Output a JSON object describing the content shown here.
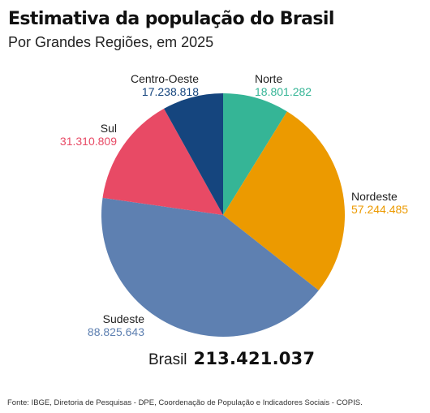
{
  "title": "Estimativa da população do Brasil",
  "subtitle": "Por Grandes Regiões, em 2025",
  "chart_data": {
    "type": "pie",
    "title": "Estimativa da população do Brasil",
    "subtitle": "Por Grandes Regiões, em 2025",
    "slices": [
      {
        "name": "Norte",
        "value": 18801282,
        "label": "18.801.282",
        "color": "#35b596"
      },
      {
        "name": "Nordeste",
        "value": 57244485,
        "label": "57.244.485",
        "color": "#ec9a00"
      },
      {
        "name": "Sudeste",
        "value": 88825643,
        "label": "88.825.643",
        "color": "#5e80b1"
      },
      {
        "name": "Sul",
        "value": 31310809,
        "label": "31.310.809",
        "color": "#e84a65"
      },
      {
        "name": "Centro-Oeste",
        "value": 17238818,
        "label": "17.238.818",
        "color": "#15457e"
      }
    ],
    "total": {
      "label": "Brasil",
      "value": "213.421.037"
    }
  },
  "source": "Fonte: IBGE, Diretoria de Pesquisas - DPE, Coordenação de População e Indicadores Sociais - COPIS."
}
